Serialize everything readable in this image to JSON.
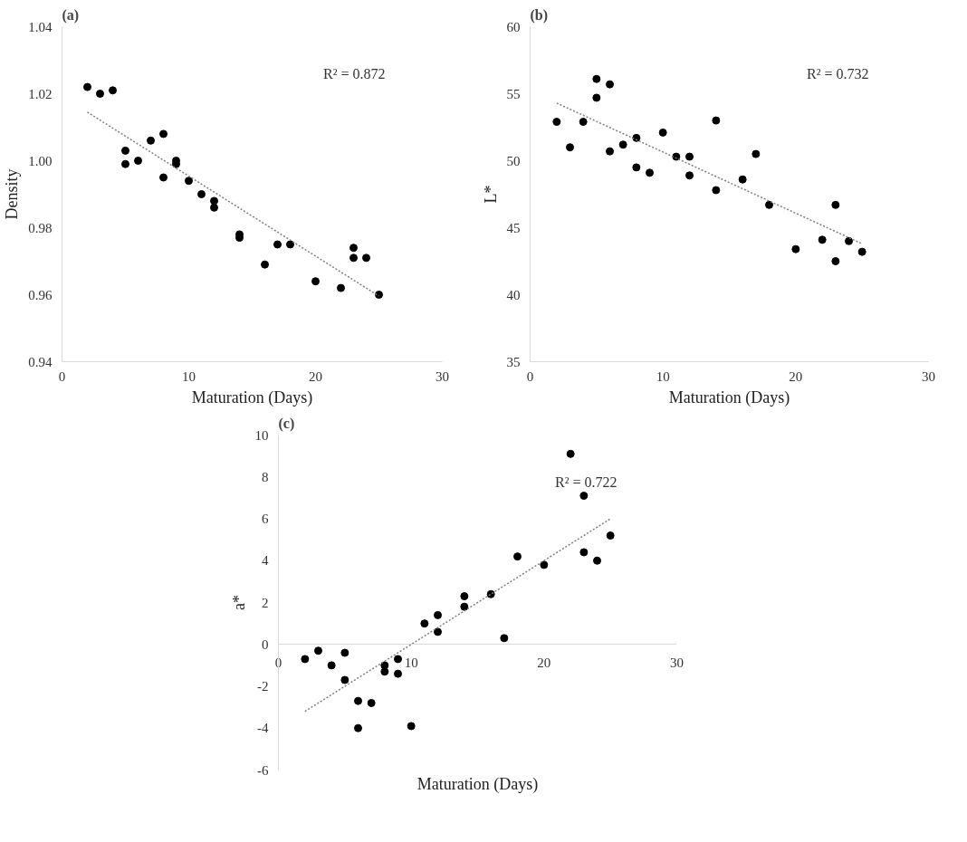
{
  "chart_data": [
    {
      "type": "scatter",
      "title": "(a)",
      "xlabel": "Maturation (Days)",
      "ylabel": "Density",
      "annotations": [
        "R² = 0.872"
      ],
      "xlim": [
        0,
        30
      ],
      "xticks": [
        0,
        10,
        20,
        30
      ],
      "ylim": [
        0.94,
        1.04
      ],
      "yticks": [
        0.94,
        0.96,
        0.98,
        {
          "value": 1.0,
          "label": "1.00"
        },
        1.02,
        1.04
      ],
      "grid": false,
      "series": [
        {
          "color": "#000000",
          "marker": "circle",
          "x": [
            2,
            3,
            4,
            5,
            5,
            6,
            7,
            8,
            8,
            9,
            9,
            10,
            11,
            12,
            12,
            14,
            14,
            16,
            17,
            18,
            20,
            22,
            23,
            23,
            24,
            25
          ],
          "values": [
            1.022,
            1.02,
            1.021,
            1.003,
            0.999,
            1.0,
            1.006,
            1.008,
            0.995,
            1.0,
            0.999,
            0.994,
            0.99,
            0.988,
            0.986,
            0.978,
            0.977,
            0.969,
            0.975,
            0.975,
            0.964,
            0.962,
            0.974,
            0.971,
            0.971,
            0.96
          ]
        },
        {
          "type": "line",
          "color": "#7f7f7f",
          "line_style": "dotted",
          "x": [
            2,
            25
          ],
          "values": [
            1.0145,
            0.9596
          ]
        }
      ]
    },
    {
      "type": "scatter",
      "title": "(b)",
      "xlabel": "Maturation (Days)",
      "ylabel": "L*",
      "annotations": [
        "R² = 0.732"
      ],
      "xlim": [
        0,
        30
      ],
      "xticks": [
        0,
        10,
        20,
        30
      ],
      "ylim": [
        35,
        60
      ],
      "yticks": [
        35,
        40,
        45,
        50,
        55,
        60
      ],
      "grid": false,
      "series": [
        {
          "color": "#000000",
          "marker": "circle",
          "x": [
            2,
            3,
            4,
            5,
            5,
            6,
            6,
            7,
            8,
            8,
            9,
            10,
            11,
            12,
            12,
            14,
            14,
            16,
            17,
            18,
            20,
            22,
            23,
            23,
            24,
            25
          ],
          "values": [
            52.9,
            51.0,
            52.9,
            56.1,
            54.7,
            55.7,
            50.7,
            51.2,
            51.7,
            49.5,
            49.1,
            52.1,
            50.3,
            50.3,
            48.9,
            53.0,
            47.8,
            48.6,
            50.5,
            46.7,
            43.4,
            44.1,
            46.7,
            42.5,
            44.0,
            43.2
          ]
        },
        {
          "type": "line",
          "color": "#7f7f7f",
          "line_style": "dotted",
          "x": [
            2,
            25
          ],
          "values": [
            54.3,
            43.8
          ]
        }
      ]
    },
    {
      "type": "scatter",
      "title": "(c)",
      "xlabel": "Maturation (Days)",
      "ylabel": "a*",
      "annotations": [
        "R² = 0.722"
      ],
      "xlim": [
        0,
        30
      ],
      "xticks": [
        0,
        10,
        20,
        30
      ],
      "ylim": [
        -6,
        10
      ],
      "yticks": [
        -6,
        -4,
        -2,
        0,
        2,
        4,
        6,
        8,
        10
      ],
      "grid": false,
      "series": [
        {
          "color": "#000000",
          "marker": "circle",
          "x": [
            2,
            3,
            4,
            5,
            5,
            6,
            6,
            7,
            8,
            8,
            9,
            9,
            10,
            11,
            12,
            12,
            14,
            14,
            16,
            17,
            18,
            20,
            22,
            23,
            23,
            24,
            25
          ],
          "values": [
            -0.7,
            -0.3,
            -1.0,
            -0.4,
            -1.7,
            -2.7,
            -4.0,
            -2.8,
            -1.0,
            -1.3,
            -0.7,
            -1.4,
            -3.9,
            1.0,
            1.4,
            0.6,
            2.3,
            1.8,
            2.4,
            0.3,
            4.2,
            3.8,
            9.1,
            7.1,
            4.4,
            4.0,
            5.2
          ]
        },
        {
          "type": "line",
          "color": "#7f7f7f",
          "line_style": "dotted",
          "x": [
            2,
            25
          ],
          "values": [
            -3.2,
            6.0
          ]
        }
      ]
    }
  ]
}
